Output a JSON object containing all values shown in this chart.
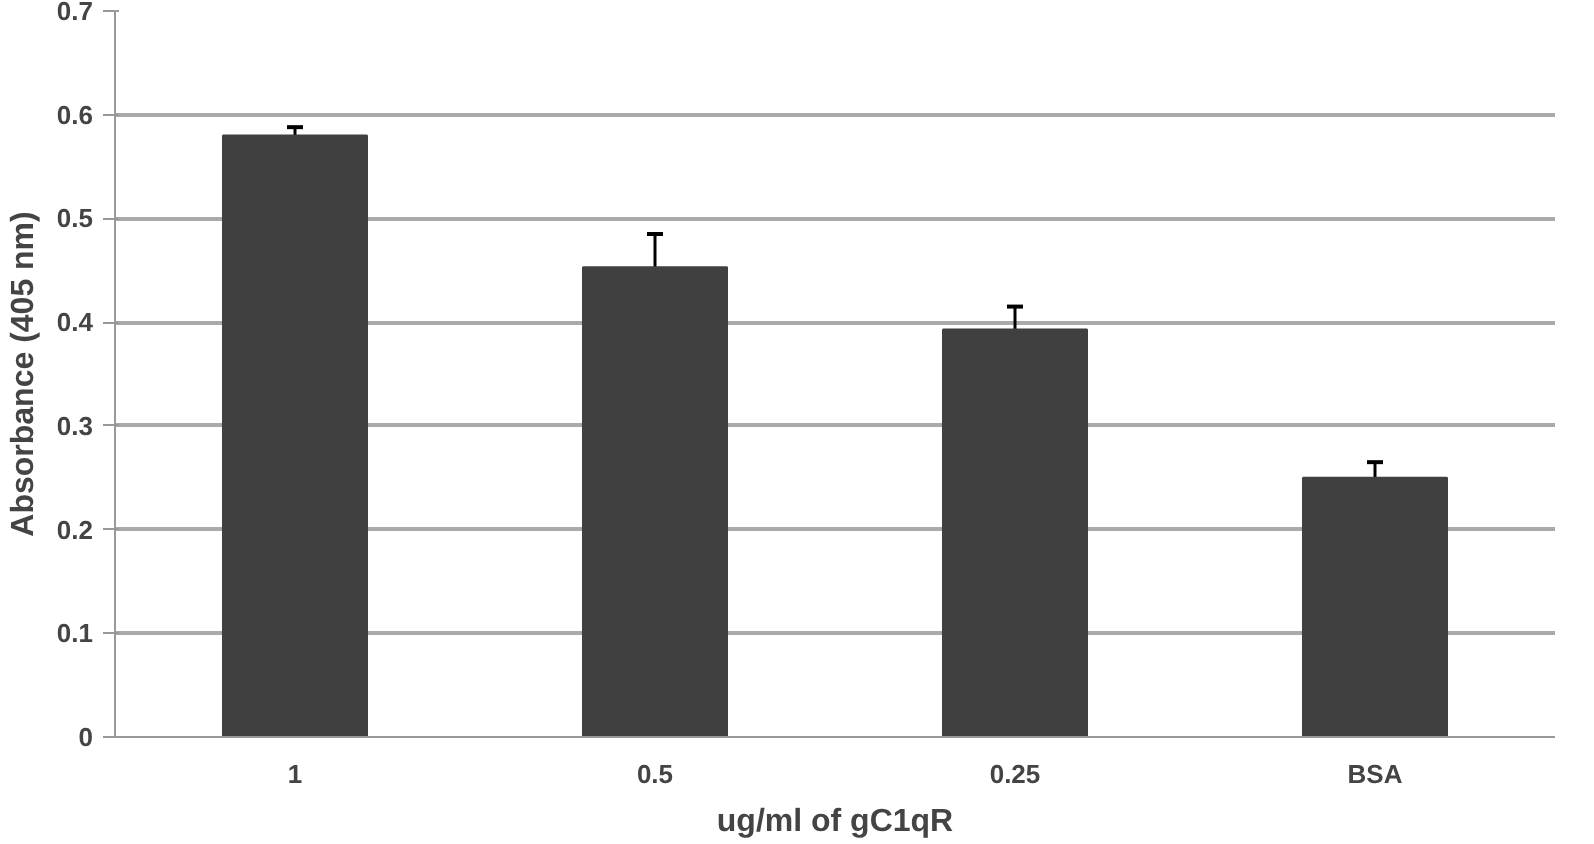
{
  "chart_data": {
    "type": "bar",
    "xlabel": "ug/ml of gC1qR",
    "ylabel": "Absorbance (405 nm)",
    "categories": [
      "1",
      "0.5",
      "0.25",
      "BSA"
    ],
    "values": [
      0.58,
      0.453,
      0.393,
      0.25
    ],
    "errors": [
      0.008,
      0.032,
      0.022,
      0.015
    ],
    "color": "#404040",
    "ylim": [
      0,
      0.7
    ],
    "yticks": [
      0,
      0.1,
      0.2,
      0.3,
      0.4,
      0.5,
      0.6,
      0.7
    ],
    "grid": "y"
  }
}
